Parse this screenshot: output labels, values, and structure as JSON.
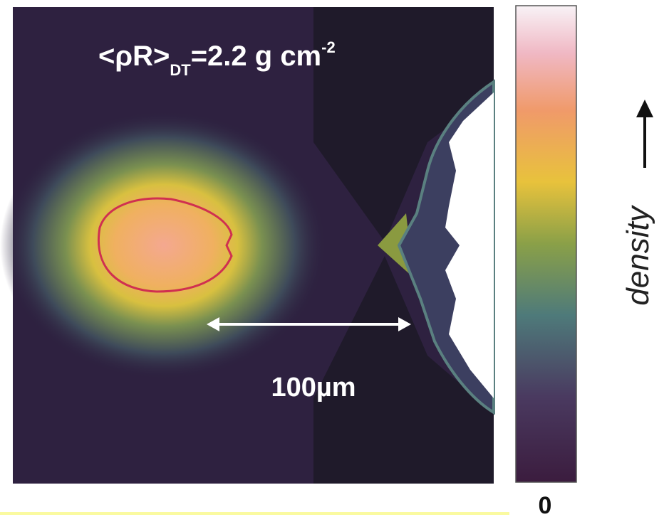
{
  "annotation": {
    "main": "<ρR>",
    "subscript": "DT",
    "value": "=2.2 g cm",
    "superscript": "-2"
  },
  "scale_label": "100µm",
  "colorbar": {
    "label": "density",
    "min_label": "0"
  }
}
